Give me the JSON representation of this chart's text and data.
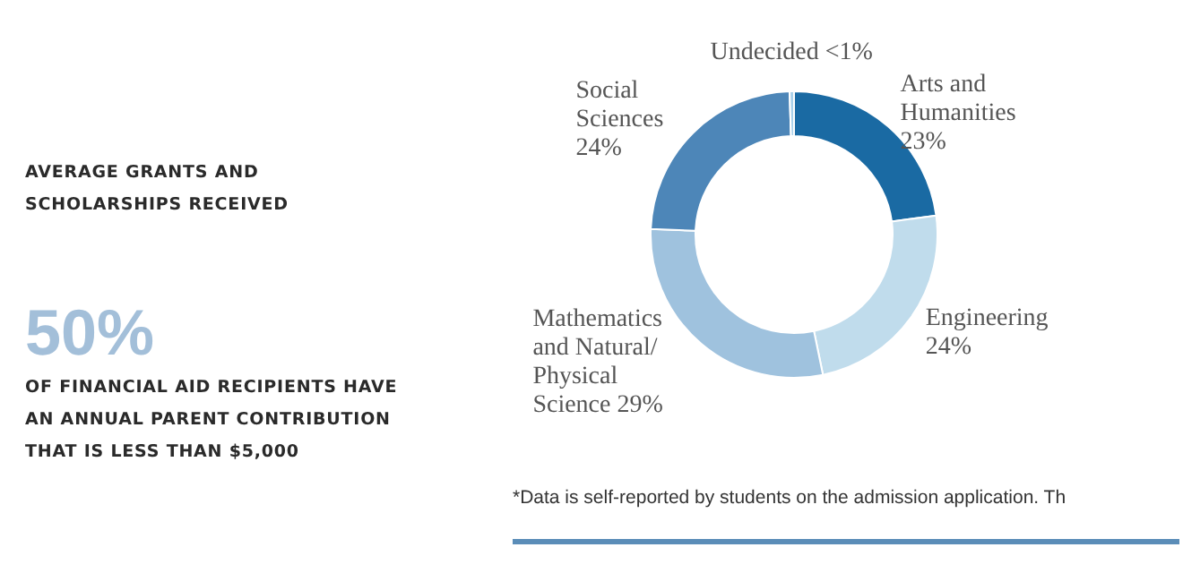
{
  "chart_data": [
    {
      "type": "other",
      "annotations": [
        "AVERAGE GRANTS AND SCHOLARSHIPS RECEIVED",
        "50%",
        "OF FINANCIAL AID RECIPIENTS HAVE AN ANNUAL PARENT CONTRIBUTION THAT IS LESS THAN $5,000"
      ]
    },
    {
      "type": "donut",
      "categories": [
        "Arts and Humanities",
        "Engineering",
        "Mathematics and Natural/ Physical Science",
        "Social Sciences",
        "Undecided"
      ],
      "values": [
        23,
        24,
        29,
        24,
        0.5
      ],
      "value_labels": [
        "23%",
        "24%",
        "29%",
        "24%",
        "<1%"
      ],
      "colors": [
        "#1a6aa3",
        "#c0dcec",
        "#9fc2de",
        "#4d86b8",
        "#a9d0ea"
      ],
      "annotations": [
        "*Data is self-reported by students on the admission application. Th"
      ]
    }
  ]
}
